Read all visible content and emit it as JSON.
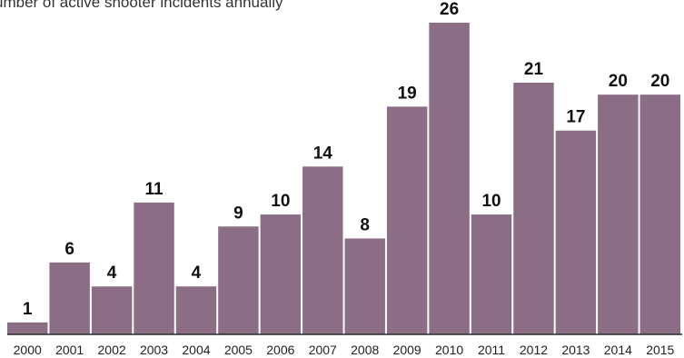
{
  "chart_data": {
    "type": "bar",
    "title": "umber of active shooter incidents annually",
    "categories": [
      "2000",
      "2001",
      "2002",
      "2003",
      "2004",
      "2005",
      "2006",
      "2007",
      "2008",
      "2009",
      "2010",
      "2011",
      "2012",
      "2013",
      "2014",
      "2015"
    ],
    "values": [
      1,
      6,
      4,
      11,
      4,
      9,
      10,
      14,
      8,
      19,
      26,
      10,
      21,
      17,
      20,
      20
    ],
    "xlabel": "",
    "ylabel": "",
    "ylim": [
      0,
      26
    ],
    "grid": false,
    "colors": {
      "bar": "#8b6e85",
      "baseline": "#2b2b2b"
    }
  }
}
